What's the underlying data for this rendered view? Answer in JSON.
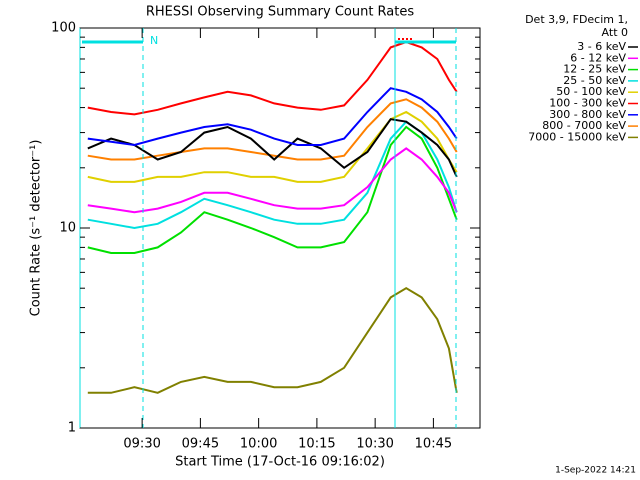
{
  "chart_data": {
    "type": "line",
    "title": "RHESSI Observing Summary Count Rates",
    "xlabel": "Start Time (17-Oct-16 09:16:02)",
    "ylabel": "Count Rate (s⁻¹ detector⁻¹)",
    "legend_header": [
      "Det 3,9, FDecim 1,",
      "Att 0"
    ],
    "annotation": "N",
    "footer": "1-Sep-2022 14:21",
    "yscale": "log",
    "ylim": [
      1,
      100
    ],
    "yticks": [
      1,
      10,
      100
    ],
    "xlim": [
      "09:14",
      "10:57"
    ],
    "xticks": [
      "09:30",
      "09:45",
      "10:00",
      "10:15",
      "10:30",
      "10:45"
    ],
    "legend": "right",
    "x": [
      "09:16",
      "09:22",
      "09:28",
      "09:34",
      "09:40",
      "09:46",
      "09:52",
      "09:58",
      "10:04",
      "10:10",
      "10:16",
      "10:22",
      "10:28",
      "10:34",
      "10:38",
      "10:42",
      "10:46",
      "10:49",
      "10:51"
    ],
    "series": [
      {
        "name": "7000 - 15000 keV",
        "color": "#808000",
        "values": [
          1.5,
          1.5,
          1.6,
          1.5,
          1.7,
          1.8,
          1.7,
          1.7,
          1.6,
          1.6,
          1.7,
          2,
          3,
          4.5,
          5,
          4.5,
          3.5,
          2.5,
          1.5
        ]
      },
      {
        "name": "12 - 25 keV",
        "color": "#00e000",
        "values": [
          8,
          7.5,
          7.5,
          8,
          9.5,
          12,
          11,
          10,
          9,
          8,
          8,
          8.5,
          12,
          26,
          32,
          28,
          20,
          14,
          11
        ]
      },
      {
        "name": "25 - 50 keV",
        "color": "#00e0e0",
        "values": [
          11,
          10.5,
          10,
          10.5,
          12,
          14,
          13,
          12,
          11,
          10.5,
          10.5,
          11,
          15,
          28,
          34,
          30,
          22,
          16,
          12
        ]
      },
      {
        "name": "6 - 12 keV",
        "color": "#ff00ff",
        "values": [
          13,
          12.5,
          12,
          12.5,
          13.5,
          15,
          15,
          14,
          13,
          12.5,
          12.5,
          13,
          16,
          22,
          25,
          22,
          18,
          15,
          12
        ]
      },
      {
        "name": "50 - 100 keV",
        "color": "#e0d000",
        "values": [
          18,
          17,
          17,
          18,
          18,
          19,
          19,
          18,
          18,
          17,
          17,
          18,
          25,
          35,
          38,
          34,
          28,
          22,
          19
        ]
      },
      {
        "name": "800 - 7000 keV",
        "color": "#ff8000",
        "values": [
          23,
          22,
          22,
          23,
          24,
          25,
          25,
          24,
          23,
          22,
          22,
          23,
          32,
          42,
          44,
          40,
          34,
          28,
          24
        ]
      },
      {
        "name": "3 - 6 keV",
        "color": "#000000",
        "values": [
          25,
          28,
          26,
          22,
          24,
          30,
          32,
          28,
          22,
          28,
          25,
          20,
          24,
          35,
          34,
          30,
          26,
          22,
          18
        ]
      },
      {
        "name": "300 - 800 keV",
        "color": "#0000ff",
        "values": [
          28,
          27,
          26,
          28,
          30,
          32,
          33,
          31,
          28,
          26,
          26,
          28,
          38,
          50,
          48,
          44,
          38,
          32,
          28
        ]
      },
      {
        "name": "100 - 300 keV",
        "color": "#ff0000",
        "values": [
          40,
          38,
          37,
          39,
          42,
          45,
          48,
          46,
          42,
          40,
          39,
          41,
          55,
          80,
          85,
          80,
          70,
          55,
          48
        ]
      }
    ],
    "legend_order": [
      6,
      3,
      1,
      2,
      4,
      8,
      7,
      5,
      0
    ]
  }
}
